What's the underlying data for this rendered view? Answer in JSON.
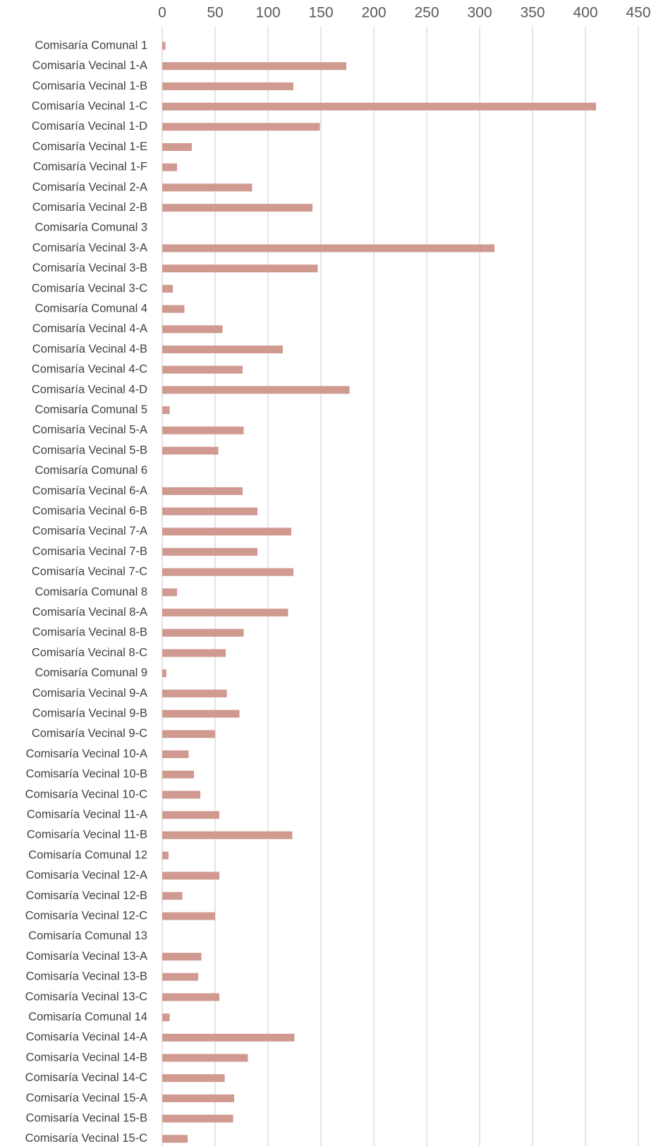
{
  "chart_data": {
    "type": "bar",
    "orientation": "horizontal",
    "title": "",
    "xlabel": "",
    "ylabel": "",
    "xlim": [
      0,
      450
    ],
    "x_ticks": [
      0,
      50,
      100,
      150,
      200,
      250,
      300,
      350,
      400,
      450
    ],
    "x_axis_position": "top",
    "grid": true,
    "legend": "none",
    "bar_color": "#d09a91",
    "grid_color": "#d9d9d9",
    "label_color": "#404040",
    "categories": [
      "Comisaría Comunal 1",
      "Comisaría Vecinal 1-A",
      "Comisaría Vecinal 1-B",
      "Comisaría Vecinal 1-C",
      "Comisaría Vecinal 1-D",
      "Comisaría Vecinal 1-E",
      "Comisaría Vecinal 1-F",
      "Comisaría Vecinal 2-A",
      "Comisaría Vecinal 2-B",
      "Comisaría Comunal 3",
      "Comisaría Vecinal 3-A",
      "Comisaría Vecinal 3-B",
      "Comisaría Vecinal 3-C",
      "Comisaría Comunal 4",
      "Comisaría Vecinal 4-A",
      "Comisaría Vecinal 4-B",
      "Comisaría Vecinal 4-C",
      "Comisaría Vecinal 4-D",
      "Comisaría Comunal 5",
      "Comisaría Vecinal 5-A",
      "Comisaría Vecinal 5-B",
      "Comisaría Comunal 6",
      "Comisaría Vecinal 6-A",
      "Comisaría Vecinal 6-B",
      "Comisaría Vecinal 7-A",
      "Comisaría Vecinal 7-B",
      "Comisaría Vecinal 7-C",
      "Comisaría Comunal 8",
      "Comisaría Vecinal 8-A",
      "Comisaría Vecinal 8-B",
      "Comisaría Vecinal 8-C",
      "Comisaría Comunal 9",
      "Comisaría Vecinal 9-A",
      "Comisaría Vecinal 9-B",
      "Comisaría Vecinal 9-C",
      "Comisaría Vecinal 10-A",
      "Comisaría Vecinal 10-B",
      "Comisaría Vecinal 10-C",
      "Comisaría Vecinal 11-A",
      "Comisaría Vecinal 11-B",
      "Comisaría Comunal 12",
      "Comisaría Vecinal 12-A",
      "Comisaría Vecinal 12-B",
      "Comisaría Vecinal 12-C",
      "Comisaría Comunal 13",
      "Comisaría Vecinal 13-A",
      "Comisaría Vecinal 13-B",
      "Comisaría Vecinal 13-C",
      "Comisaría Comunal 14",
      "Comisaría Vecinal 14-A",
      "Comisaría Vecinal 14-B",
      "Comisaría Vecinal 14-C",
      "Comisaría Vecinal 15-A",
      "Comisaría Vecinal 15-B",
      "Comisaría Vecinal 15-C"
    ],
    "values": [
      3,
      174,
      124,
      410,
      149,
      28,
      14,
      85,
      142,
      0,
      314,
      147,
      10,
      21,
      57,
      114,
      76,
      177,
      7,
      77,
      53,
      0,
      76,
      90,
      122,
      90,
      124,
      14,
      119,
      77,
      60,
      4,
      61,
      73,
      50,
      25,
      30,
      36,
      54,
      123,
      6,
      54,
      19,
      50,
      0,
      37,
      34,
      54,
      7,
      125,
      81,
      59,
      68,
      67,
      24
    ]
  }
}
